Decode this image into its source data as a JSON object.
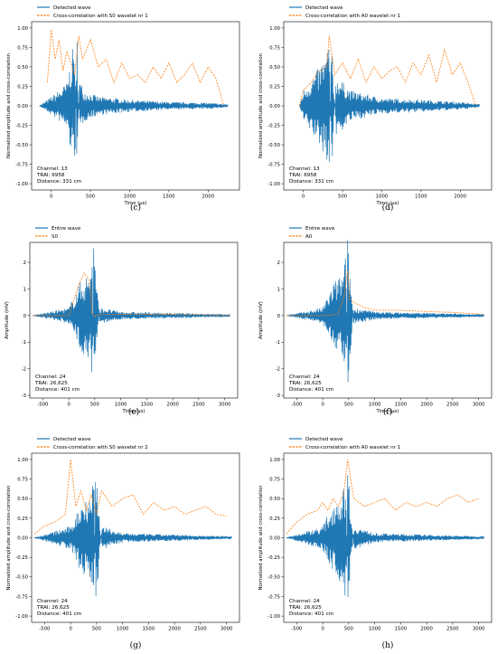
{
  "chart_data": [
    {
      "panel": "(c)",
      "type": "line",
      "xlabel": "Time (μs)",
      "ylabel": "Normalized amplitude and cross-correlation",
      "xlim": [
        -250,
        2400
      ],
      "ylim": [
        -1.08,
        1.08
      ],
      "x_ticks": [
        0,
        500,
        1000,
        1500,
        2000
      ],
      "y_ticks": [
        -1.0,
        -0.75,
        -0.5,
        -0.25,
        0.0,
        0.25,
        0.5,
        0.75,
        1.0
      ],
      "info": [
        "Channel: 13",
        "TRAI: 6958",
        "Distance: 331 cm"
      ],
      "legend_placement": "top-left",
      "series": [
        {
          "name": "Detected wave",
          "color": "#1f77b4",
          "style": "solid",
          "x": [
            -150,
            0,
            100,
            200,
            300,
            330,
            360,
            420,
            600,
            1000,
            1500,
            2000,
            2250
          ],
          "y": [
            0,
            0.12,
            0.2,
            0.3,
            0.9,
            -0.97,
            0.35,
            0.2,
            0.12,
            0.08,
            0.05,
            0.04,
            0.02
          ]
        },
        {
          "name": "Cross-correlation with S0 wavelet nr 1",
          "color": "#ff7f0e",
          "style": "dashed",
          "x": [
            -50,
            0,
            50,
            100,
            150,
            200,
            250,
            300,
            350,
            400,
            500,
            600,
            700,
            800,
            900,
            1000,
            1100,
            1200,
            1300,
            1400,
            1500,
            1600,
            1700,
            1800,
            1900,
            2000,
            2100,
            2200
          ],
          "y": [
            0.3,
            0.98,
            0.6,
            0.85,
            0.45,
            0.7,
            0.55,
            0.4,
            0.9,
            0.6,
            0.85,
            0.5,
            0.6,
            0.3,
            0.55,
            0.35,
            0.4,
            0.3,
            0.5,
            0.35,
            0.55,
            0.3,
            0.4,
            0.55,
            0.3,
            0.5,
            0.35,
            0.0
          ]
        }
      ]
    },
    {
      "panel": "(d)",
      "type": "line",
      "xlabel": "Time (μs)",
      "ylabel": "Normalized amplitude and cross-correlation",
      "xlim": [
        -250,
        2400
      ],
      "ylim": [
        -1.08,
        1.08
      ],
      "x_ticks": [
        0,
        500,
        1000,
        1500,
        2000
      ],
      "y_ticks": [
        -1.0,
        -0.75,
        -0.5,
        -0.25,
        0.0,
        0.25,
        0.5,
        0.75,
        1.0
      ],
      "info": [
        "Channel: 13",
        "TRAI: 6958",
        "Distance: 331 cm"
      ],
      "legend_placement": "top-left",
      "series": [
        {
          "name": "Detected wave",
          "color": "#1f77b4",
          "style": "solid",
          "x": [
            -50,
            0,
            100,
            200,
            300,
            330,
            360,
            420,
            600,
            1000,
            1500,
            2000,
            2250
          ],
          "y": [
            0,
            0.2,
            0.35,
            0.5,
            0.7,
            1.0,
            -0.88,
            0.4,
            0.2,
            0.1,
            0.08,
            0.05,
            0.02
          ]
        },
        {
          "name": "Cross-correlation with A0 wavelet nr 1",
          "color": "#ff7f0e",
          "style": "dashed",
          "x": [
            -50,
            0,
            100,
            200,
            300,
            330,
            400,
            500,
            600,
            700,
            800,
            900,
            1000,
            1100,
            1200,
            1300,
            1400,
            1500,
            1600,
            1700,
            1800,
            1900,
            2000,
            2100,
            2200
          ],
          "y": [
            0.0,
            0.2,
            0.3,
            0.45,
            0.5,
            0.9,
            0.4,
            0.55,
            0.35,
            0.6,
            0.3,
            0.5,
            0.35,
            0.45,
            0.5,
            0.3,
            0.55,
            0.4,
            0.65,
            0.3,
            0.72,
            0.4,
            0.55,
            0.3,
            0.0
          ]
        }
      ]
    },
    {
      "panel": "(e)",
      "type": "line",
      "xlabel": "Time (μs)",
      "ylabel": "Amplitude (mV)",
      "xlim": [
        -750,
        3250
      ],
      "ylim": [
        -3.1,
        2.75
      ],
      "x_ticks": [
        -500,
        0,
        500,
        1000,
        1500,
        2000,
        2500,
        3000
      ],
      "y_ticks": [
        -3,
        -2,
        -1,
        0,
        1,
        2
      ],
      "info": [
        "Channel: 24",
        "TRAI: 26,625",
        "Distance: 401 cm"
      ],
      "legend_placement": "top-left",
      "series": [
        {
          "name": "Entire wave",
          "color": "#1f77b4",
          "style": "solid",
          "x": [
            -700,
            0,
            200,
            300,
            400,
            450,
            480,
            600,
            1000,
            1500,
            2000,
            2500,
            3100
          ],
          "y": [
            0,
            0.3,
            1.2,
            1.5,
            1.6,
            2.6,
            -2.9,
            0.3,
            0.15,
            0.12,
            0.1,
            0.08,
            0.05
          ]
        },
        {
          "name": "S0",
          "color": "#ff7f0e",
          "style": "dashed",
          "x": [
            -700,
            0,
            200,
            300,
            400,
            450,
            480,
            600,
            1000,
            1500,
            2000,
            2500,
            3100
          ],
          "y": [
            0,
            0.0,
            1.2,
            1.6,
            1.3,
            0.1,
            -0.05,
            0.05,
            0.05,
            0.04,
            0.04,
            0.03,
            0.02
          ]
        }
      ]
    },
    {
      "panel": "(f)",
      "type": "line",
      "xlabel": "Time (μs)",
      "ylabel": "Amplitude (mV)",
      "xlim": [
        -750,
        3250
      ],
      "ylim": [
        -3.1,
        2.75
      ],
      "x_ticks": [
        -500,
        0,
        500,
        1000,
        1500,
        2000,
        2500,
        3000
      ],
      "y_ticks": [
        -3,
        -2,
        -1,
        0,
        1,
        2
      ],
      "info": [
        "Channel: 24",
        "TRAI: 26,625",
        "Distance: 401 cm"
      ],
      "legend_placement": "top-left",
      "series": [
        {
          "name": "Entire wave",
          "color": "#1f77b4",
          "style": "solid",
          "x": [
            -700,
            0,
            200,
            300,
            400,
            450,
            480,
            600,
            1000,
            1500,
            2000,
            2500,
            3100
          ],
          "y": [
            0,
            0.3,
            1.2,
            1.5,
            1.6,
            2.6,
            -2.9,
            0.3,
            0.15,
            0.12,
            0.1,
            0.08,
            0.05
          ]
        },
        {
          "name": "A0",
          "color": "#ff7f0e",
          "style": "dashed",
          "x": [
            -700,
            0,
            300,
            420,
            480,
            520,
            600,
            800,
            1000,
            1500,
            2000,
            2500,
            3100
          ],
          "y": [
            0,
            0.0,
            0.05,
            0.8,
            1.7,
            0.6,
            0.5,
            0.3,
            0.2,
            0.2,
            0.15,
            0.12,
            0.05
          ]
        }
      ]
    },
    {
      "panel": "(g)",
      "type": "line",
      "xlabel": "",
      "ylabel": "Normalized amplitude and cross-correlation",
      "xlim": [
        -750,
        3250
      ],
      "ylim": [
        -1.08,
        1.08
      ],
      "x_ticks": [
        -500,
        0,
        500,
        1000,
        1500,
        2000,
        2500,
        3000
      ],
      "y_ticks": [
        -1.0,
        -0.75,
        -0.5,
        -0.25,
        0.0,
        0.25,
        0.5,
        0.75,
        1.0
      ],
      "info": [
        "Channel: 24",
        "TRAI: 26,625",
        "Distance: 401 cm"
      ],
      "legend_placement": "top-left",
      "series": [
        {
          "name": "Detected wave",
          "color": "#1f77b4",
          "style": "solid",
          "x": [
            -700,
            0,
            200,
            300,
            400,
            450,
            480,
            600,
            1000,
            1500,
            2000,
            2500,
            3100
          ],
          "y": [
            0,
            0.15,
            0.45,
            0.55,
            0.6,
            0.9,
            -1.0,
            0.15,
            0.06,
            0.05,
            0.04,
            0.03,
            0.02
          ]
        },
        {
          "name": "Cross-correlation with S0 wavelet nr 2",
          "color": "#ff7f0e",
          "style": "dashed",
          "x": [
            -700,
            -500,
            -300,
            -100,
            0,
            100,
            200,
            300,
            400,
            500,
            600,
            800,
            1000,
            1200,
            1400,
            1600,
            1800,
            2000,
            2200,
            2400,
            2600,
            2800,
            3000
          ],
          "y": [
            0.05,
            0.15,
            0.2,
            0.3,
            1.0,
            0.4,
            0.6,
            0.35,
            0.55,
            0.3,
            0.6,
            0.4,
            0.5,
            0.55,
            0.3,
            0.45,
            0.35,
            0.4,
            0.3,
            0.35,
            0.4,
            0.3,
            0.28
          ]
        }
      ]
    },
    {
      "panel": "(h)",
      "type": "line",
      "xlabel": "",
      "ylabel": "Normalized amplitude and cross-correlation",
      "xlim": [
        -750,
        3250
      ],
      "ylim": [
        -1.08,
        1.08
      ],
      "x_ticks": [
        -500,
        0,
        500,
        1000,
        1500,
        2000,
        2500,
        3000
      ],
      "y_ticks": [
        -1.0,
        -0.75,
        -0.5,
        -0.25,
        0.0,
        0.25,
        0.5,
        0.75,
        1.0
      ],
      "info": [
        "Channel: 24",
        "TRAI: 26,625",
        "Distance: 401 cm"
      ],
      "legend_placement": "top-left",
      "series": [
        {
          "name": "Detected wave",
          "color": "#1f77b4",
          "style": "solid",
          "x": [
            -700,
            0,
            200,
            300,
            400,
            450,
            480,
            600,
            1000,
            1500,
            2000,
            2500,
            3100
          ],
          "y": [
            0,
            0.15,
            0.45,
            0.55,
            0.6,
            0.9,
            -1.0,
            0.15,
            0.06,
            0.05,
            0.04,
            0.03,
            0.02
          ]
        },
        {
          "name": "Cross-correlation with A0 wavelet nr 1",
          "color": "#ff7f0e",
          "style": "dashed",
          "x": [
            -700,
            -500,
            -300,
            -100,
            0,
            100,
            200,
            300,
            400,
            480,
            600,
            800,
            1000,
            1200,
            1400,
            1600,
            1800,
            2000,
            2200,
            2400,
            2600,
            2800,
            3000
          ],
          "y": [
            0.05,
            0.2,
            0.3,
            0.35,
            0.45,
            0.35,
            0.5,
            0.4,
            0.55,
            1.0,
            0.5,
            0.4,
            0.45,
            0.5,
            0.35,
            0.45,
            0.4,
            0.45,
            0.4,
            0.5,
            0.55,
            0.45,
            0.5
          ]
        }
      ]
    }
  ]
}
